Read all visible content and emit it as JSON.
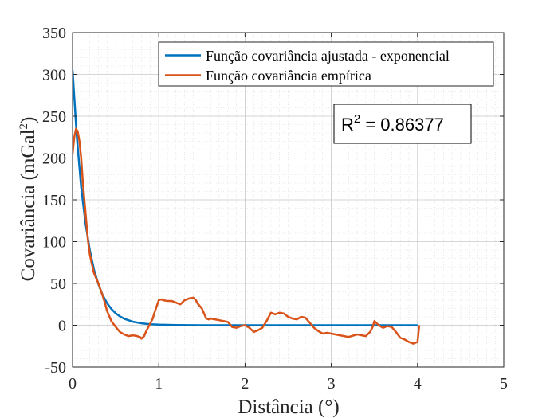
{
  "chart_data": {
    "type": "line",
    "xlabel": "Distância (°)",
    "ylabel": "Covariância (mGal",
    "ylabel_superscript": "2",
    "ylabel_close": ")",
    "xlim": [
      0,
      5
    ],
    "ylim": [
      -50,
      350
    ],
    "x_ticks": [
      0,
      1,
      2,
      3,
      4,
      5
    ],
    "y_ticks": [
      -50,
      0,
      50,
      100,
      150,
      200,
      250,
      300,
      350
    ],
    "x_tick_labels": [
      "0",
      "1",
      "2",
      "3",
      "4",
      "5"
    ],
    "y_tick_labels": [
      "-50",
      "0",
      "50",
      "100",
      "150",
      "200",
      "250",
      "300",
      "350"
    ],
    "grid": true,
    "minor_grid": true,
    "legend_position": "top-right",
    "annotation": {
      "base": "R",
      "sup": "2",
      "rest": " = 0.86377"
    },
    "series": [
      {
        "name": "Função covariância ajustada - exponencial",
        "color": "#0072BD",
        "x": [
          0,
          0.05,
          0.1,
          0.15,
          0.2,
          0.25,
          0.3,
          0.35,
          0.4,
          0.45,
          0.5,
          0.55,
          0.6,
          0.7,
          0.8,
          0.9,
          1.0,
          1.2,
          1.5,
          2.0,
          2.5,
          3.0,
          3.5,
          4.0
        ],
        "y": [
          305,
          225,
          165,
          122,
          90,
          66,
          49,
          36,
          26.5,
          19.5,
          14.3,
          10.5,
          7.7,
          4.2,
          2.3,
          1.2,
          0.7,
          0.2,
          0,
          0,
          0,
          0,
          0,
          0
        ]
      },
      {
        "name": "Função covariância empírica",
        "color": "#D95319",
        "x": [
          0,
          0.02,
          0.04,
          0.06,
          0.08,
          0.1,
          0.12,
          0.15,
          0.18,
          0.2,
          0.22,
          0.25,
          0.3,
          0.35,
          0.38,
          0.4,
          0.45,
          0.5,
          0.55,
          0.6,
          0.65,
          0.7,
          0.75,
          0.78,
          0.8,
          0.83,
          0.85,
          0.88,
          0.9,
          0.93,
          0.95,
          0.98,
          1.0,
          1.03,
          1.05,
          1.1,
          1.15,
          1.2,
          1.25,
          1.3,
          1.35,
          1.4,
          1.43,
          1.45,
          1.5,
          1.55,
          1.58,
          1.6,
          1.65,
          1.7,
          1.75,
          1.8,
          1.85,
          1.9,
          1.95,
          2.0,
          2.05,
          2.1,
          2.15,
          2.2,
          2.25,
          2.3,
          2.35,
          2.4,
          2.45,
          2.5,
          2.55,
          2.6,
          2.65,
          2.7,
          2.75,
          2.8,
          2.85,
          2.9,
          2.95,
          3.0,
          3.1,
          3.2,
          3.3,
          3.4,
          3.45,
          3.48,
          3.5,
          3.55,
          3.6,
          3.65,
          3.7,
          3.75,
          3.8,
          3.85,
          3.9,
          3.95,
          4.0,
          4.02
        ],
        "y": [
          205,
          225,
          235,
          232,
          220,
          200,
          170,
          135,
          100,
          85,
          75,
          62,
          50,
          35,
          25,
          17,
          5,
          -2,
          -8,
          -11,
          -13,
          -12,
          -13,
          -14,
          -16,
          -13,
          -8,
          -2,
          2,
          8,
          15,
          24,
          30,
          31,
          30,
          29,
          29,
          27,
          25,
          30,
          32,
          33,
          30,
          26,
          20,
          8,
          7,
          8,
          7,
          6,
          5,
          4,
          -2,
          -3,
          -1,
          0,
          -3,
          -8,
          -6,
          -3,
          5,
          15,
          13,
          15,
          14,
          10,
          8,
          7,
          10,
          9,
          3,
          -3,
          -7,
          -10,
          -9,
          -10,
          -12,
          -14,
          -11,
          -13,
          -8,
          -2,
          5,
          0,
          -3,
          -1,
          -2,
          -8,
          -15,
          -17,
          -20,
          -22,
          -20,
          0
        ]
      }
    ]
  }
}
